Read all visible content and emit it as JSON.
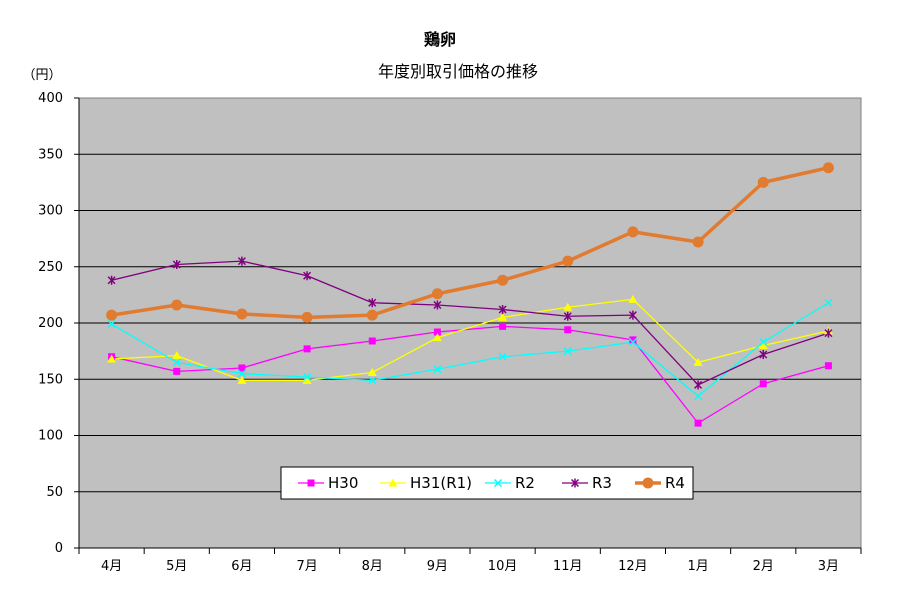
{
  "chart_data": {
    "type": "line",
    "title": "鶏卵",
    "subtitle": "年度別取引価格の推移",
    "ylabel": "（円）",
    "xlabel": "",
    "ylim": [
      0,
      400
    ],
    "yticks": [
      0,
      50,
      100,
      150,
      200,
      250,
      300,
      350,
      400
    ],
    "grid": true,
    "legend": "bottom-center",
    "categories": [
      "4月",
      "5月",
      "6月",
      "7月",
      "8月",
      "9月",
      "10月",
      "11月",
      "12月",
      "1月",
      "2月",
      "3月"
    ],
    "series": [
      {
        "name": "H30",
        "color": "#ff00ff",
        "marker": "square",
        "values": [
          170,
          157,
          160,
          177,
          184,
          192,
          197,
          194,
          185,
          111,
          146,
          162
        ]
      },
      {
        "name": "H31(R1)",
        "color": "#ffff00",
        "marker": "triangle",
        "values": [
          168,
          171,
          149,
          149,
          156,
          187,
          205,
          214,
          221,
          165,
          180,
          193
        ]
      },
      {
        "name": "R2",
        "color": "#00ffff",
        "marker": "x",
        "values": [
          199,
          165,
          155,
          152,
          149,
          159,
          170,
          175,
          183,
          135,
          183,
          218
        ]
      },
      {
        "name": "R3",
        "color": "#800080",
        "marker": "star",
        "values": [
          238,
          252,
          255,
          242,
          218,
          216,
          212,
          206,
          207,
          145,
          172,
          191
        ]
      },
      {
        "name": "R4",
        "color": "#e07b30",
        "marker": "circle",
        "values": [
          207,
          216,
          208,
          205,
          207,
          226,
          238,
          255,
          281,
          272,
          325,
          338
        ]
      }
    ]
  }
}
